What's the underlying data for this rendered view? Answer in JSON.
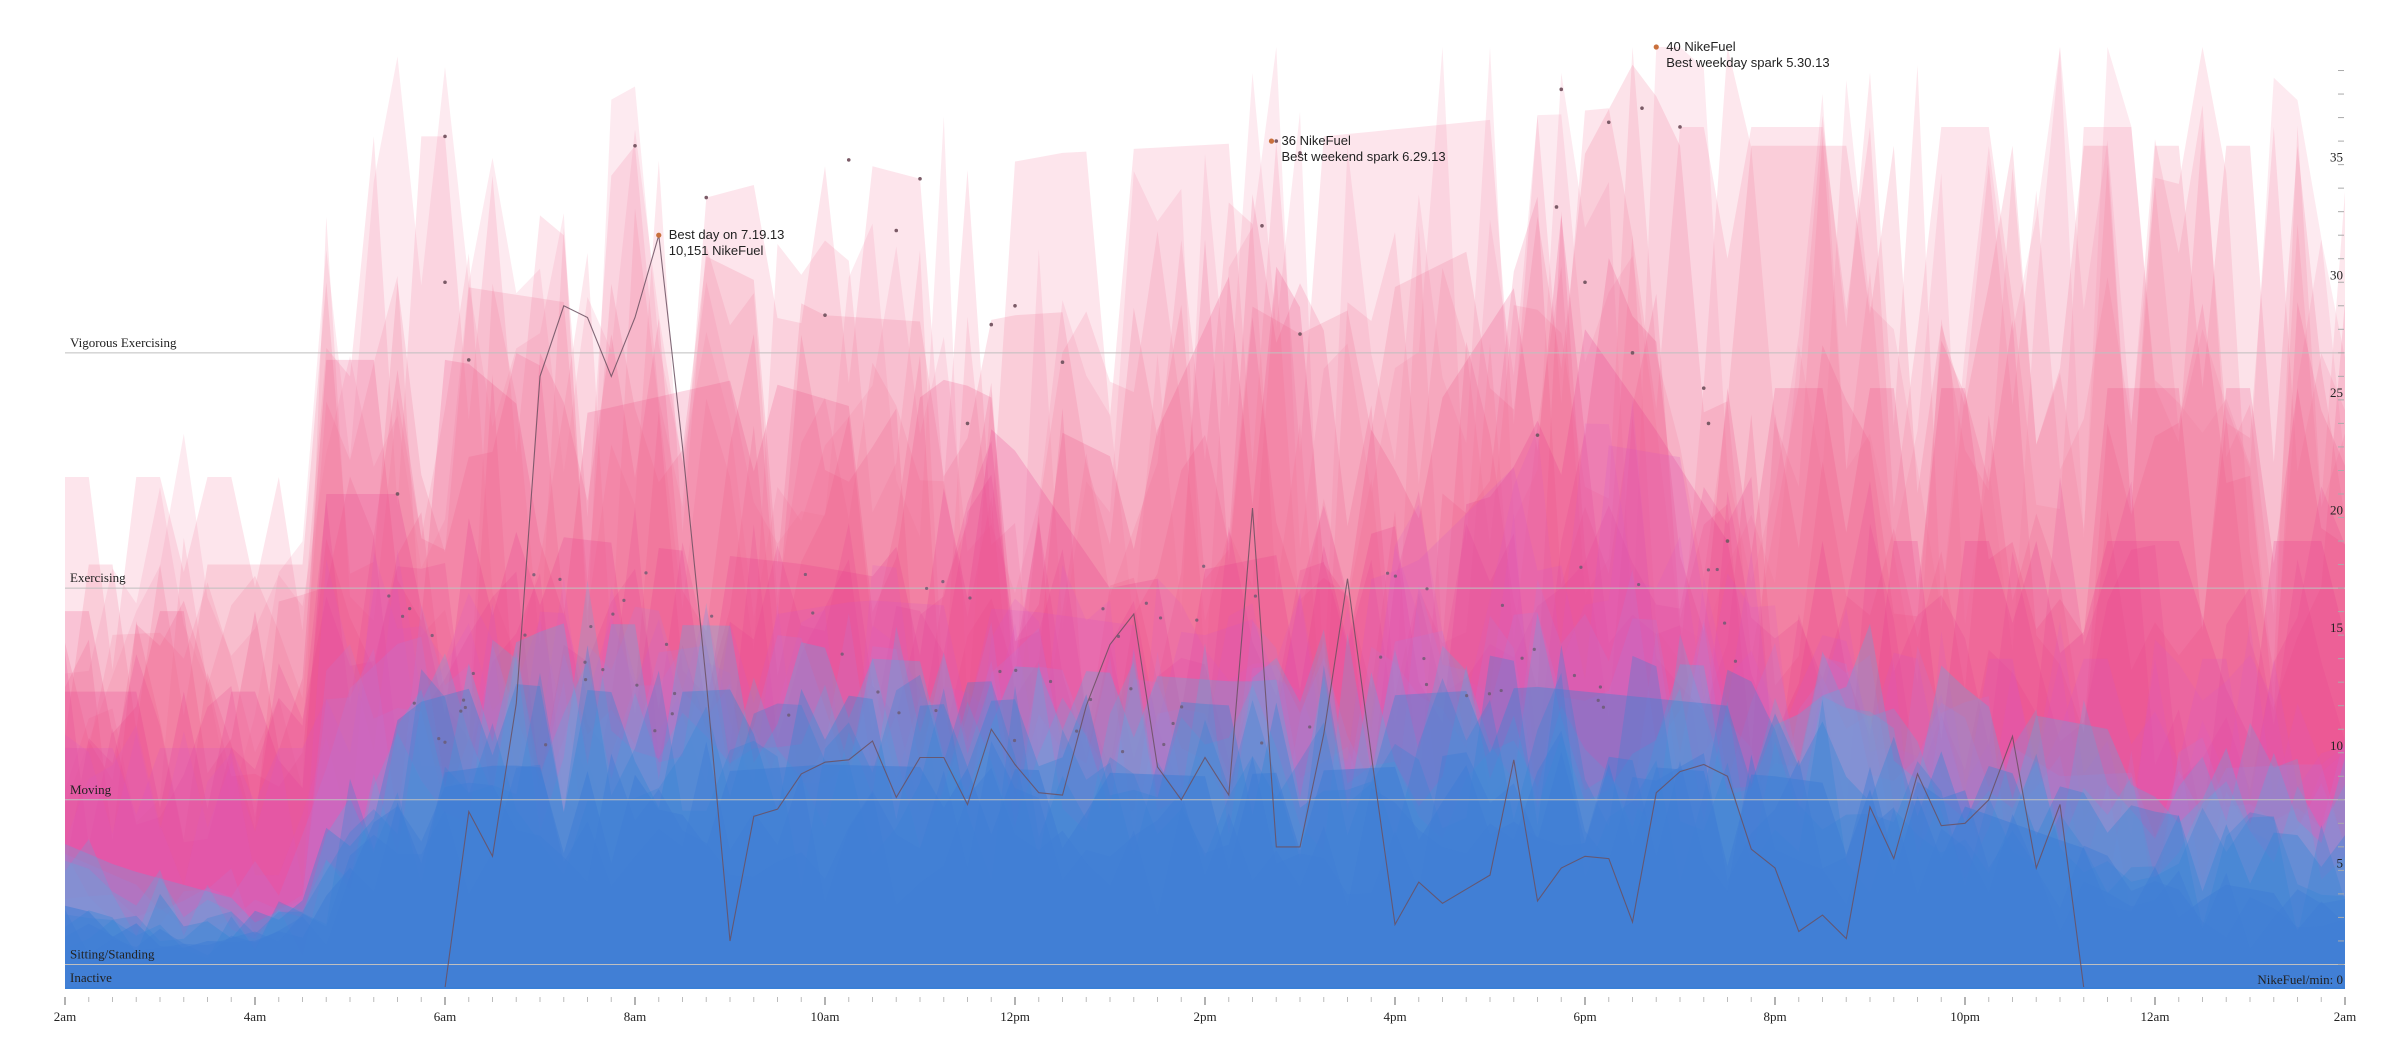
{
  "chart_data": {
    "type": "area",
    "x_ticks": [
      "2am",
      "4am",
      "6am",
      "8am",
      "10am",
      "12pm",
      "2pm",
      "4pm",
      "6pm",
      "8pm",
      "10pm",
      "12am",
      "2am"
    ],
    "y_ticks": [
      5,
      10,
      15,
      20,
      25,
      30,
      35
    ],
    "y_unit_label": "NikeFuel/min: 0",
    "ylim": [
      0,
      40
    ],
    "activity_levels": [
      {
        "name": "Inactive",
        "value": 0
      },
      {
        "name": "Sitting/Standing",
        "value": 1
      },
      {
        "name": "Moving",
        "value": 8
      },
      {
        "name": "Exercising",
        "value": 17
      },
      {
        "name": "Vigorous Exercising",
        "value": 27
      }
    ],
    "annotations": [
      {
        "hour": 8.25,
        "value": 32,
        "lines": [
          "Best day on 7.19.13",
          "10,151 NikeFuel"
        ]
      },
      {
        "hour": 14.7,
        "value": 36,
        "lines": [
          "36 NikeFuel",
          "Best weekend spark 6.29.13"
        ]
      },
      {
        "hour": 18.75,
        "value": 40,
        "lines": [
          "40 NikeFuel",
          "Best weekday spark 5.30.13"
        ]
      }
    ],
    "best_day_series": {
      "hours": [
        2,
        2.5,
        3,
        3.5,
        4,
        4.5,
        5,
        5.5,
        6,
        6.25,
        6.5,
        6.75,
        7,
        7.25,
        7.5,
        7.75,
        8,
        8.25,
        8.5,
        8.75,
        9,
        9.25,
        9.5,
        9.75,
        10,
        10.25,
        10.5,
        10.75,
        11,
        11.25,
        11.5,
        11.75,
        12,
        12.25,
        12.5,
        12.75,
        13,
        13.25,
        13.5,
        13.75,
        14,
        14.25,
        14.5,
        14.75,
        15,
        15.25,
        15.5,
        15.75,
        16,
        16.25,
        16.5,
        16.75,
        17,
        17.25,
        17.5,
        17.75,
        18,
        18.25,
        18.5,
        18.75,
        19,
        19.25,
        19.5,
        19.75,
        20,
        20.25,
        20.5,
        20.75,
        21,
        21.25,
        21.5,
        21.75,
        22,
        22.25,
        22.5,
        22.75,
        23,
        23.25,
        23.5,
        24,
        25,
        26
      ],
      "values": [
        0,
        0,
        0,
        0,
        0,
        0,
        0,
        0,
        0,
        7.5,
        5.6,
        12.1,
        26,
        29,
        28.5,
        26,
        28.5,
        32,
        23,
        13,
        2,
        7.3,
        7.6,
        9.1,
        9.6,
        9.7,
        10.5,
        8.1,
        9.8,
        9.8,
        7.8,
        11,
        9.5,
        8.3,
        8.2,
        12,
        14.6,
        15.9,
        9.4,
        8,
        9.8,
        8.2,
        20.4,
        6,
        6,
        10.8,
        17.4,
        9.9,
        2.7,
        4.5,
        3.6,
        4.2,
        4.8,
        9.7,
        3.7,
        5.1,
        5.6,
        5.5,
        2.8,
        8.3,
        9.2,
        9.5,
        9,
        5.9,
        5.1,
        2.4,
        3.1,
        2.1,
        7.7,
        5.5,
        9.1,
        6.9,
        7,
        8,
        10.7,
        5.1,
        7.8,
        0,
        0,
        0,
        0,
        0
      ]
    },
    "peak_marker_values": [
      36.2,
      30,
      26.7,
      21,
      35.8,
      33.6,
      28.6,
      35.2,
      34.4,
      32.2,
      24,
      28.2,
      26.6,
      29,
      35.5,
      36,
      32.4,
      27.8,
      38.2,
      33.2,
      30,
      27,
      36.8,
      37.4,
      40,
      36.6,
      25.5,
      24,
      19,
      23.5
    ],
    "layers": [
      {
        "color": "#f48aa8",
        "opacity": 0.22,
        "peaks": [
          [
            6,
            36.2
          ],
          [
            7.25,
            32
          ],
          [
            8,
            35.8
          ],
          [
            8.75,
            33.6
          ],
          [
            10.25,
            35.2
          ],
          [
            11,
            34.4
          ],
          [
            12.5,
            35.5
          ],
          [
            14.75,
            36
          ],
          [
            18.25,
            37.4
          ],
          [
            18.5,
            38.2
          ],
          [
            19,
            36.6
          ]
        ]
      },
      {
        "color": "#f06c92",
        "opacity": 0.2,
        "peaks": [
          [
            5.9,
            30
          ],
          [
            7.5,
            29
          ],
          [
            8.3,
            32
          ],
          [
            10,
            28.6
          ],
          [
            11.5,
            28.2
          ],
          [
            12,
            28.6
          ],
          [
            14.4,
            29.2
          ],
          [
            15,
            27.8
          ],
          [
            17.7,
            33.2
          ],
          [
            18.6,
            40
          ],
          [
            18.9,
            35.8
          ]
        ]
      },
      {
        "color": "#ee4f83",
        "opacity": 0.22,
        "peaks": [
          [
            6.2,
            26.7
          ],
          [
            7,
            24
          ],
          [
            9.2,
            26
          ],
          [
            10.7,
            24.2
          ],
          [
            11.3,
            26
          ],
          [
            13.3,
            22
          ],
          [
            14.5,
            32.4
          ],
          [
            16,
            22
          ],
          [
            18,
            34.4
          ],
          [
            18.4,
            29
          ],
          [
            19.2,
            25.5
          ]
        ]
      },
      {
        "color": "#e8368f",
        "opacity": 0.22,
        "peaks": [
          [
            5.7,
            21
          ],
          [
            6.5,
            19.5
          ],
          [
            9.8,
            18
          ],
          [
            10.5,
            17.5
          ],
          [
            11.8,
            24
          ],
          [
            13,
            17
          ],
          [
            15.5,
            19
          ],
          [
            17.1,
            21
          ],
          [
            18,
            28
          ],
          [
            18.7,
            24
          ],
          [
            19.5,
            19
          ]
        ]
      },
      {
        "color": "#d957c4",
        "opacity": 0.2,
        "peaks": [
          [
            5.5,
            17
          ],
          [
            7,
            16
          ],
          [
            8.9,
            15.5
          ],
          [
            10.4,
            16.5
          ],
          [
            12.2,
            16
          ],
          [
            14,
            15
          ],
          [
            16.2,
            18
          ],
          [
            17.6,
            23.5
          ],
          [
            19.1,
            22.5
          ],
          [
            20.3,
            15.2
          ],
          [
            21.5,
            14
          ]
        ]
      },
      {
        "color": "#b57ad6",
        "opacity": 0.22,
        "peaks": [
          [
            2,
            9.5
          ],
          [
            3.2,
            6
          ],
          [
            5.6,
            15
          ],
          [
            7.8,
            14
          ],
          [
            9.5,
            15
          ],
          [
            11.2,
            14.2
          ],
          [
            13.5,
            13
          ],
          [
            15.2,
            14
          ],
          [
            17.4,
            16
          ],
          [
            19.3,
            15.5
          ],
          [
            21.4,
            13
          ],
          [
            23,
            9
          ],
          [
            25.5,
            9.5
          ]
        ]
      },
      {
        "color": "#3fb8ec",
        "opacity": 0.25,
        "peaks": [
          [
            2,
            10.2
          ],
          [
            2.6,
            8.5
          ],
          [
            4.5,
            5
          ],
          [
            5.8,
            13
          ],
          [
            7.2,
            15.5
          ],
          [
            9,
            15.4
          ],
          [
            10.5,
            14
          ],
          [
            12.3,
            13.6
          ],
          [
            14.4,
            13
          ],
          [
            16,
            13.5
          ],
          [
            17.8,
            14
          ],
          [
            19.8,
            13.6
          ],
          [
            21.2,
            15.8
          ],
          [
            22.2,
            12
          ],
          [
            24.3,
            10.4
          ],
          [
            25.7,
            9.8
          ]
        ]
      },
      {
        "color": "#2f86d8",
        "opacity": 0.35,
        "peaks": [
          [
            2,
            6
          ],
          [
            3,
            4
          ],
          [
            4.7,
            6.5
          ],
          [
            5.6,
            12
          ],
          [
            6.5,
            13
          ],
          [
            8,
            12.5
          ],
          [
            9.6,
            12.8
          ],
          [
            11,
            12
          ],
          [
            12.8,
            12.5
          ],
          [
            14.2,
            12
          ],
          [
            15.8,
            12.4
          ],
          [
            17.5,
            12.8
          ],
          [
            19.5,
            12
          ],
          [
            21,
            11
          ],
          [
            22.6,
            9
          ],
          [
            24,
            7.5
          ],
          [
            25.4,
            6.5
          ]
        ]
      },
      {
        "color": "#3f7ed6",
        "opacity": 0.55,
        "peaks": [
          [
            2,
            3.5
          ],
          [
            3.5,
            2
          ],
          [
            4.8,
            4
          ],
          [
            5.7,
            9
          ],
          [
            6.6,
            9.5
          ],
          [
            8.2,
            9
          ],
          [
            10,
            9.5
          ],
          [
            12,
            9.3
          ],
          [
            14,
            9
          ],
          [
            16,
            9.4
          ],
          [
            18,
            9.6
          ],
          [
            20,
            9
          ],
          [
            21.8,
            8
          ],
          [
            23.2,
            6
          ],
          [
            24.6,
            4.5
          ],
          [
            26,
            3.5
          ]
        ]
      }
    ]
  }
}
